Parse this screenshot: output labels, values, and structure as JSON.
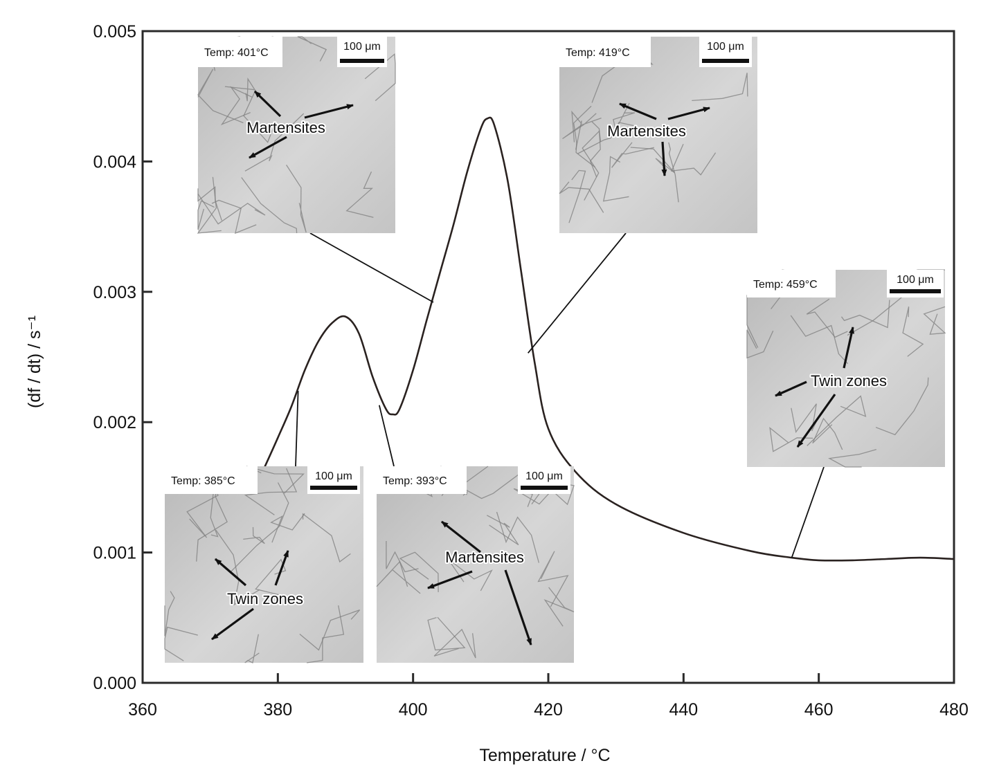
{
  "chart_data": {
    "type": "line",
    "title": "",
    "xlabel": "Temperature / °C",
    "ylabel": "(df / dt) / s⁻¹",
    "xlim": [
      360,
      480
    ],
    "ylim": [
      0.0,
      0.005
    ],
    "xticks": [
      360,
      380,
      400,
      420,
      440,
      460,
      480
    ],
    "xtick_labels": [
      "360",
      "380",
      "400",
      "420",
      "440",
      "460",
      "480"
    ],
    "yticks": [
      0.0,
      0.001,
      0.002,
      0.003,
      0.004,
      0.005
    ],
    "ytick_labels": [
      "0.000",
      "0.001",
      "0.002",
      "0.003",
      "0.004",
      "0.005"
    ],
    "grid": false,
    "legend": "none",
    "line_color": "#2a2220",
    "series": [
      {
        "x": [
          378,
          380,
          382,
          384,
          386,
          388,
          390,
          392,
          394,
          396,
          397,
          398,
          400,
          402,
          404,
          406,
          408,
          410,
          411,
          412,
          414,
          416,
          418,
          420,
          424,
          430,
          440,
          450,
          456,
          460,
          465,
          470,
          475,
          480
        ],
        "y": [
          0.00165,
          0.00188,
          0.00212,
          0.0024,
          0.00262,
          0.00276,
          0.00281,
          0.00268,
          0.00235,
          0.0021,
          0.00206,
          0.0021,
          0.0024,
          0.00278,
          0.00315,
          0.00352,
          0.00392,
          0.00425,
          0.00433,
          0.00428,
          0.00385,
          0.00315,
          0.00245,
          0.00195,
          0.00162,
          0.00137,
          0.00115,
          0.00101,
          0.00096,
          0.00094,
          0.00094,
          0.00095,
          0.00096,
          0.00095
        ]
      }
    ],
    "insets": [
      {
        "temp_label": "Temp: 401°C",
        "scale_label": "100 μm",
        "annotation": "Martensites",
        "points_to": {
          "x": 403,
          "y": 0.00292
        }
      },
      {
        "temp_label": "Temp: 419°C",
        "scale_label": "100 μm",
        "annotation": "Martensites",
        "points_to": {
          "x": 417,
          "y": 0.00253
        }
      },
      {
        "temp_label": "Temp: 459°C",
        "scale_label": "100 μm",
        "annotation": "Twin zones",
        "points_to": {
          "x": 456,
          "y": 0.00096
        }
      },
      {
        "temp_label": "Temp: 385°C",
        "scale_label": "100 μm",
        "annotation": "Twin zones",
        "points_to": {
          "x": 383,
          "y": 0.00224
        }
      },
      {
        "temp_label": "Temp: 393°C",
        "scale_label": "100 μm",
        "annotation": "Martensites",
        "points_to": {
          "x": 395,
          "y": 0.00213
        }
      }
    ]
  }
}
